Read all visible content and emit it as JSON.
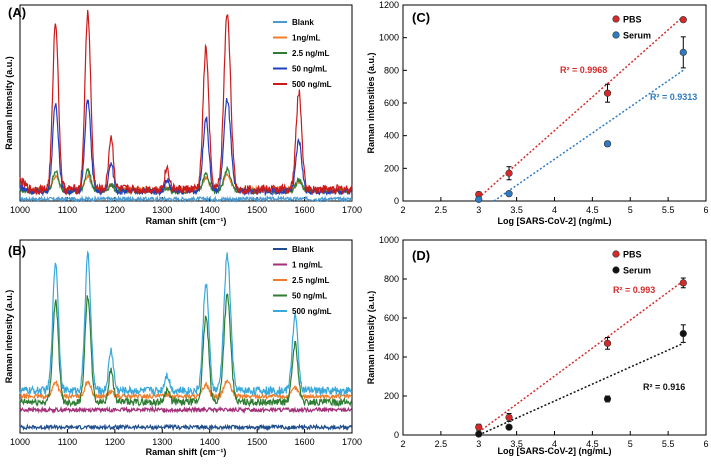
{
  "chart_data": [
    {
      "panel": "(A)",
      "type": "line",
      "xlabel": "Raman shift (cm⁻¹)",
      "ylabel": "Raman Intensity (a.u.)",
      "xlim": [
        1000,
        1700
      ],
      "xticks": [
        1000,
        1100,
        1200,
        1300,
        1400,
        1500,
        1600,
        1700
      ],
      "peaks": [
        1075,
        1143,
        1192,
        1310,
        1392,
        1437,
        1588
      ],
      "series": [
        {
          "name": "Blank",
          "color": "#4b9bd1",
          "baseline": 0.01,
          "scale": 0.0
        },
        {
          "name": "1ng/mL",
          "color": "#f07c2a",
          "baseline": 0.06,
          "scale": 0.07
        },
        {
          "name": "2.5 ng/mL",
          "color": "#2e7d32",
          "baseline": 0.05,
          "scale": 0.11
        },
        {
          "name": "50 ng/mL",
          "color": "#1f3fbf",
          "baseline": 0.05,
          "scale": 0.47
        },
        {
          "name": "500 ng/mL",
          "color": "#cc1a1a",
          "baseline": 0.06,
          "scale": 0.9
        }
      ]
    },
    {
      "panel": "(B)",
      "type": "line",
      "xlabel": "Raman shift (cm⁻¹)",
      "ylabel": "Raman intensity (a.u.)",
      "xlim": [
        1000,
        1700
      ],
      "xticks": [
        1000,
        1100,
        1200,
        1300,
        1400,
        1500,
        1600,
        1700
      ],
      "peaks": [
        1075,
        1143,
        1192,
        1310,
        1392,
        1437,
        1580
      ],
      "series": [
        {
          "name": "Blank",
          "color": "#1f4e8c",
          "baseline": 0.03,
          "scale": 0.0
        },
        {
          "name": "1 ng/mL",
          "color": "#a4307a",
          "baseline": 0.12,
          "scale": 0.0
        },
        {
          "name": "2.5 ng/mL",
          "color": "#f07c2a",
          "baseline": 0.19,
          "scale": 0.08
        },
        {
          "name": "50 ng/mL",
          "color": "#2e7d32",
          "baseline": 0.16,
          "scale": 0.55
        },
        {
          "name": "500 ng/mL",
          "color": "#39a8db",
          "baseline": 0.22,
          "scale": 0.7
        }
      ]
    },
    {
      "panel": "(C)",
      "type": "scatter",
      "xlabel": "Log [SARS-CoV-2] (ng/mL)",
      "ylabel": "Raman intensities (a.u.)",
      "xlim": [
        2,
        6
      ],
      "ylim": [
        0,
        1200
      ],
      "xticks": [
        2,
        2.5,
        3,
        3.5,
        4,
        4.5,
        5,
        5.5,
        6
      ],
      "yticks": [
        0,
        200,
        400,
        600,
        800,
        1000,
        1200
      ],
      "series": [
        {
          "name": "PBS",
          "color": "#d62a2a",
          "x": [
            3.0,
            3.4,
            4.7,
            5.7
          ],
          "y": [
            40,
            170,
            660,
            1110
          ],
          "err": [
            15,
            40,
            55,
            10
          ],
          "fit": [
            3.0,
            20,
            5.7,
            1130
          ],
          "r2": "R² = 0.9968"
        },
        {
          "name": "Serum",
          "color": "#2e7bc4",
          "x": [
            3.0,
            3.4,
            4.7,
            5.7
          ],
          "y": [
            10,
            45,
            350,
            910
          ],
          "err": [
            8,
            10,
            15,
            95
          ],
          "fit": [
            3.2,
            0,
            5.7,
            800
          ],
          "r2": "R² = 0.9313"
        }
      ]
    },
    {
      "panel": "(D)",
      "type": "scatter",
      "xlabel": "Log [SARS-CoV-2] (ng/mL)",
      "ylabel": "Raman intensity (a.u.)",
      "xlim": [
        2,
        6
      ],
      "ylim": [
        0,
        1000
      ],
      "xticks": [
        2,
        2.5,
        3,
        3.5,
        4,
        4.5,
        5,
        5.5,
        6
      ],
      "yticks": [
        0,
        200,
        400,
        600,
        800,
        1000
      ],
      "series": [
        {
          "name": "PBS",
          "color": "#d62a2a",
          "x": [
            3.0,
            3.4,
            4.7,
            5.7
          ],
          "y": [
            40,
            90,
            470,
            780
          ],
          "err": [
            15,
            20,
            30,
            25
          ],
          "fit": [
            3.0,
            15,
            5.7,
            790
          ],
          "r2": "R² = 0.993"
        },
        {
          "name": "Serum",
          "color": "#111111",
          "x": [
            3.0,
            3.4,
            4.7,
            5.7
          ],
          "y": [
            5,
            40,
            185,
            520
          ],
          "err": [
            5,
            10,
            15,
            45
          ],
          "fit": [
            3.0,
            0,
            5.7,
            470
          ],
          "r2": "R² = 0.916"
        }
      ]
    }
  ]
}
